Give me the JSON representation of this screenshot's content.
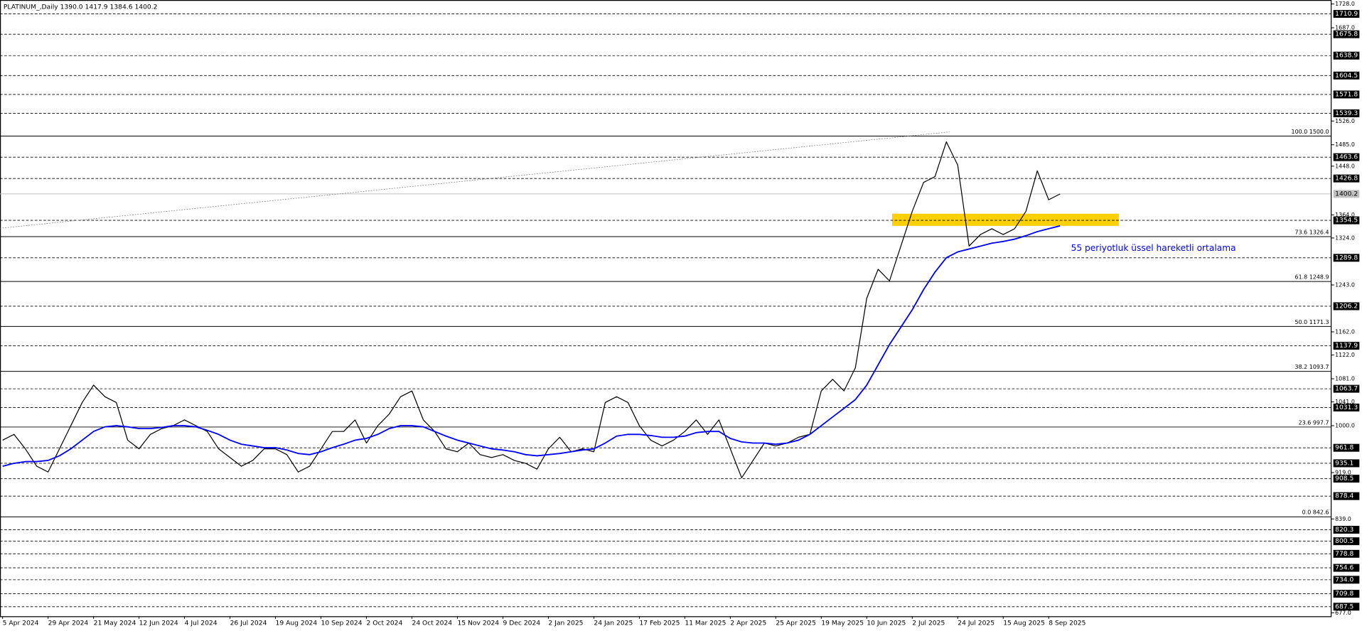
{
  "chart_data": {
    "type": "line",
    "title": "PLATINUM_,Daily  1390.0 1417.9 1384.6 1400.2",
    "annotation": "55 periyotluk üssel hareketli ortalama",
    "categories": [
      "5 Apr 2024",
      null,
      null,
      null,
      "29 Apr 2024",
      null,
      null,
      null,
      "21 May 2024",
      null,
      null,
      null,
      "12 Jun 2024",
      null,
      null,
      null,
      "4 Jul 2024",
      null,
      null,
      null,
      "26 Jul 2024",
      null,
      null,
      null,
      "19 Aug 2024",
      null,
      null,
      null,
      "10 Sep 2024",
      null,
      null,
      null,
      "2 Oct 2024",
      null,
      null,
      null,
      "24 Oct 2024",
      null,
      null,
      null,
      "15 Nov 2024",
      null,
      null,
      null,
      "9 Dec 2024",
      null,
      null,
      null,
      "2 Jan 2025",
      null,
      null,
      null,
      "24 Jan 2025",
      null,
      null,
      null,
      "17 Feb 2025",
      null,
      null,
      null,
      "11 Mar 2025",
      null,
      null,
      null,
      "2 Apr 2025",
      null,
      null,
      null,
      "25 Apr 2025",
      null,
      null,
      null,
      "19 May 2025",
      null,
      null,
      null,
      "10 Jun 2025",
      null,
      null,
      null,
      "2 Jul 2025",
      null,
      null,
      null,
      "24 Jul 2025",
      null,
      null,
      null,
      "15 Aug 2025",
      null,
      null,
      null,
      "8 Sep 2025",
      null
    ],
    "series": [
      {
        "color": "#000000",
        "values": [
          975,
          985,
          960,
          930,
          920,
          960,
          1000,
          1040,
          1070,
          1050,
          1040,
          975,
          960,
          985,
          995,
          1000,
          1010,
          1000,
          990,
          960,
          945,
          930,
          940,
          960,
          960,
          950,
          920,
          930,
          960,
          990,
          990,
          1010,
          970,
          1000,
          1020,
          1050,
          1060,
          1010,
          990,
          960,
          955,
          970,
          950,
          945,
          950,
          940,
          935,
          925,
          960,
          980,
          955,
          960,
          955,
          1040,
          1050,
          1040,
          1000,
          975,
          965,
          975,
          990,
          1010,
          985,
          1010,
          960,
          910,
          940,
          970,
          965,
          970,
          980,
          985,
          1060,
          1080,
          1060,
          1100,
          1220,
          1270,
          1250,
          1310,
          1370,
          1420,
          1430,
          1490,
          1450,
          1310,
          1330,
          1340,
          1330,
          1340,
          1370,
          1440,
          1390,
          1400
        ]
      },
      {
        "color": "#0000ff",
        "values": [
          930,
          935,
          938,
          938,
          940,
          948,
          960,
          975,
          990,
          998,
          1000,
          998,
          995,
          995,
          997,
          1000,
          1000,
          998,
          992,
          985,
          975,
          968,
          965,
          962,
          962,
          958,
          952,
          950,
          955,
          962,
          968,
          975,
          978,
          985,
          995,
          1000,
          1000,
          998,
          990,
          982,
          975,
          970,
          965,
          960,
          958,
          955,
          950,
          948,
          950,
          952,
          955,
          958,
          960,
          970,
          982,
          985,
          985,
          983,
          980,
          980,
          982,
          988,
          990,
          990,
          978,
          972,
          970,
          970,
          968,
          970,
          975,
          985,
          1000,
          1015,
          1030,
          1045,
          1070,
          1105,
          1140,
          1170,
          1200,
          1235,
          1265,
          1290,
          1300,
          1305,
          1310,
          1315,
          1318,
          1322,
          1328,
          1335,
          1340,
          1345
        ]
      }
    ],
    "ylim": [
      671.0,
      1734.9
    ],
    "yticks": [
      {
        "value": 1728.0,
        "label": "1728.0"
      },
      {
        "value": 1687.0,
        "label": "1687.0"
      },
      {
        "value": 1526.0,
        "label": "1526.0"
      },
      {
        "value": 1485.0,
        "label": "1485.0"
      },
      {
        "value": 1448.0,
        "label": "1448.0"
      },
      {
        "value": 1364.0,
        "label": "1364.0"
      },
      {
        "value": 1324.0,
        "label": "1324.0"
      },
      {
        "value": 1243.0,
        "label": "1243.0"
      },
      {
        "value": 1162.0,
        "label": "1162.0"
      },
      {
        "value": 1122.0,
        "label": "1122.0"
      },
      {
        "value": 1081.0,
        "label": "1081.0"
      },
      {
        "value": 1041.0,
        "label": "1041.0"
      },
      {
        "value": 1000.0,
        "label": "1000.0"
      },
      {
        "value": 919.0,
        "label": "919.0"
      },
      {
        "value": 839.0,
        "label": "839.0"
      },
      {
        "value": 677.0,
        "label": "677.0"
      }
    ],
    "levels": [
      {
        "value": 1710.9,
        "label": "1710.9"
      },
      {
        "value": 1675.8,
        "label": "1675.8"
      },
      {
        "value": 1638.9,
        "label": "1638.9"
      },
      {
        "value": 1604.5,
        "label": "1604.5"
      },
      {
        "value": 1571.8,
        "label": "1571.8"
      },
      {
        "value": 1539.3,
        "label": "1539.3"
      },
      {
        "value": 1463.6,
        "label": "1463.6"
      },
      {
        "value": 1426.8,
        "label": "1426.8"
      },
      {
        "value": 1354.5,
        "label": "1354.5"
      },
      {
        "value": 1289.8,
        "label": "1289.8"
      },
      {
        "value": 1206.2,
        "label": "1206.2"
      },
      {
        "value": 1137.9,
        "label": "1137.9"
      },
      {
        "value": 1063.7,
        "label": "1063.7"
      },
      {
        "value": 1031.3,
        "label": "1031.3"
      },
      {
        "value": 961.8,
        "label": "961.8"
      },
      {
        "value": 935.1,
        "label": "935.1"
      },
      {
        "value": 908.5,
        "label": "908.5"
      },
      {
        "value": 878.4,
        "label": "878.4"
      },
      {
        "value": 820.3,
        "label": "820.3"
      },
      {
        "value": 800.5,
        "label": "800.5"
      },
      {
        "value": 778.8,
        "label": "778.8"
      },
      {
        "value": 754.6,
        "label": "754.6"
      },
      {
        "value": 734.0,
        "label": "734.0"
      },
      {
        "value": 709.8,
        "label": "709.8"
      },
      {
        "value": 687.5,
        "label": "687.5"
      }
    ],
    "current_price": {
      "value": 1400.2,
      "label": "1400.2"
    },
    "fib_levels": [
      {
        "value": 1500.0,
        "label": "100.0 1500.0"
      },
      {
        "value": 1326.4,
        "label": "73.6 1326.4"
      },
      {
        "value": 1248.9,
        "label": "61.8 1248.9"
      },
      {
        "value": 1171.3,
        "label": "50.0 1171.3"
      },
      {
        "value": 1093.7,
        "label": "38.2 1093.7"
      },
      {
        "value": 997.7,
        "label": "23.6 997.7"
      },
      {
        "value": 842.6,
        "label": "0.0 842.6"
      }
    ],
    "zone": {
      "ylim": [
        1345,
        1366
      ],
      "color": "#ffd000"
    }
  }
}
